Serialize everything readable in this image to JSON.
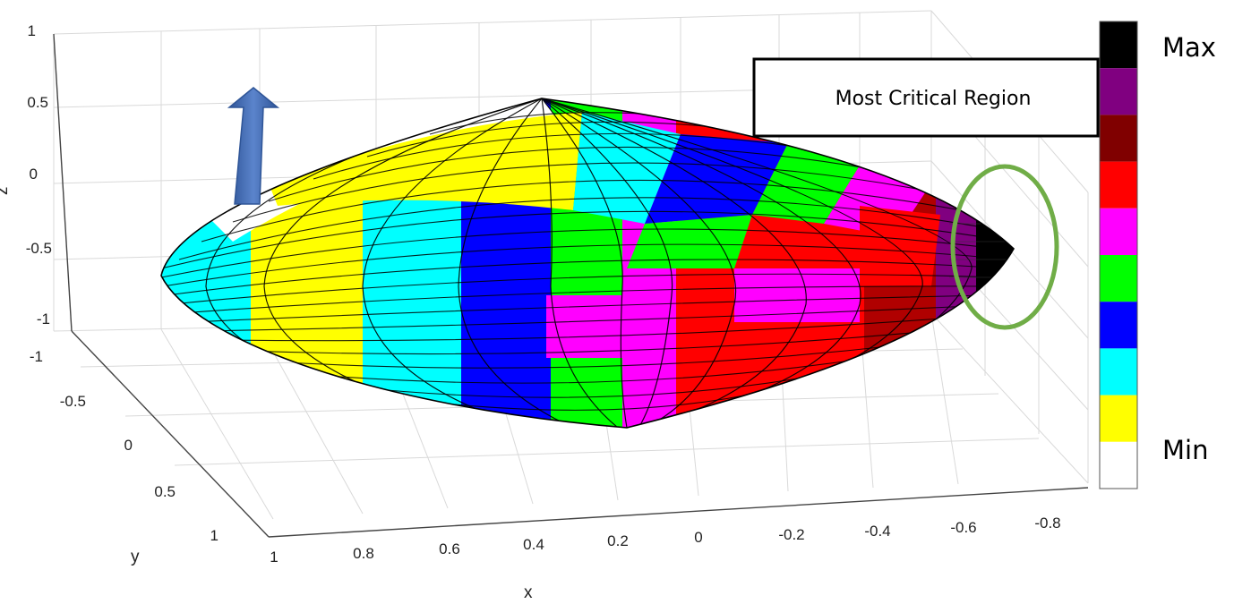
{
  "chart_data": {
    "type": "surface-3d",
    "title": "",
    "xlabel": "x",
    "ylabel": "y",
    "zlabel": "z",
    "x_ticks": [
      "1",
      "0.8",
      "0.6",
      "0.4",
      "0.2",
      "0",
      "-0.2",
      "-0.4",
      "-0.6",
      "-0.8"
    ],
    "y_ticks": [
      "-1",
      "-0.5",
      "0",
      "0.5",
      "1"
    ],
    "z_ticks": [
      "1",
      "0.5",
      "0",
      "-0.5",
      "-1"
    ],
    "xlim": [
      -0.9,
      1.0
    ],
    "ylim": [
      -1,
      1
    ],
    "zlim": [
      -1,
      1
    ],
    "grid": true,
    "surface": "pointed ellipsoid (lens-shaped), color-coded by discrete levels",
    "colorbar": {
      "label_top": "Max",
      "label_bottom": "Min",
      "levels": [
        "#000000",
        "#800080",
        "#800000",
        "#ff0000",
        "#ff00ff",
        "#00ff00",
        "#0000ff",
        "#00ffff",
        "#ffff00",
        "#ffffff"
      ]
    },
    "annotation": {
      "text": "Most Critical Region",
      "marker_color": "#70ad47"
    },
    "arrow_color": "#4472c4"
  }
}
